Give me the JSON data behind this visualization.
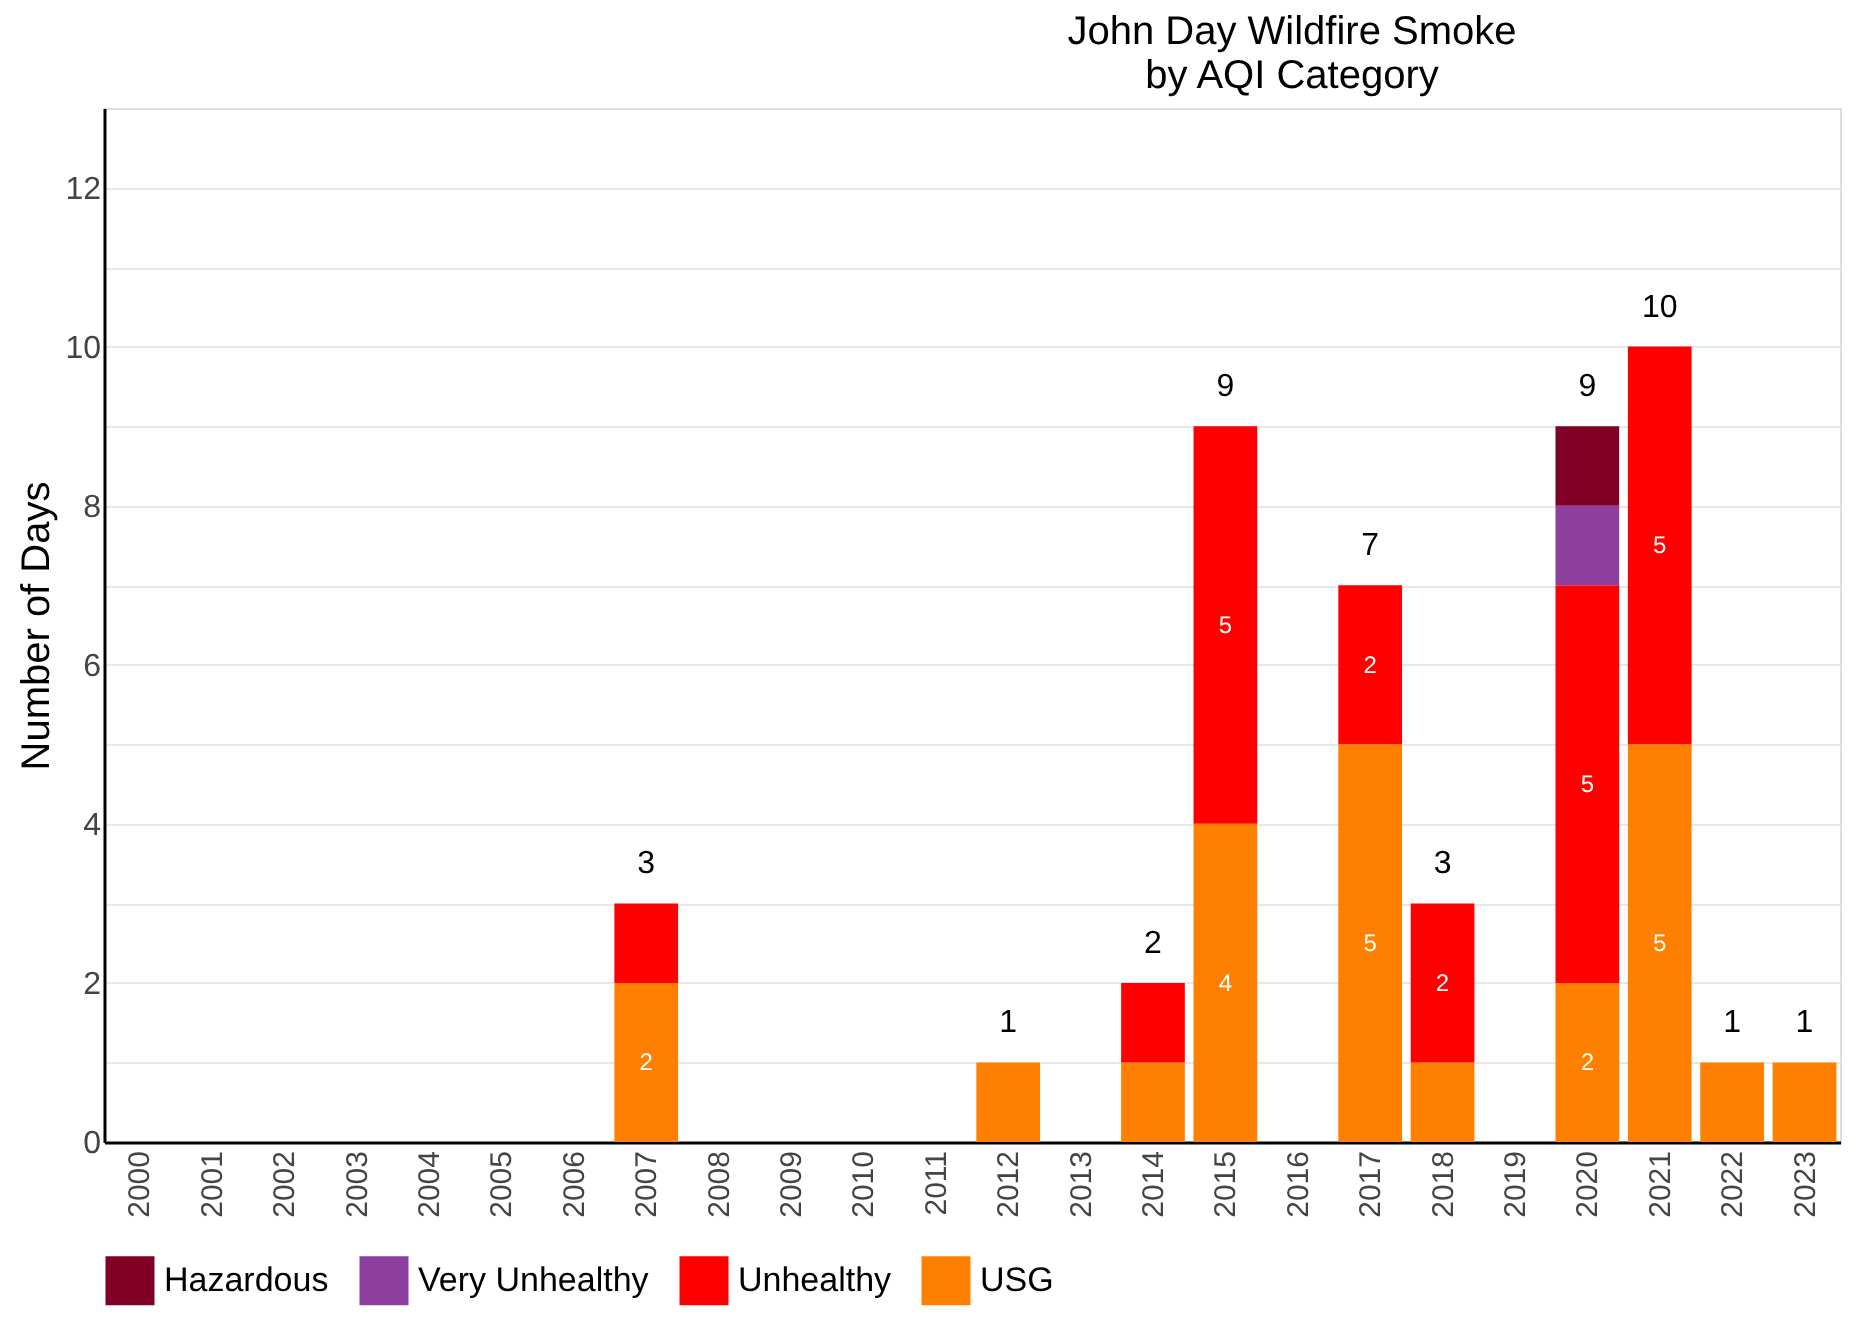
{
  "chart_data": {
    "type": "bar",
    "stacked": true,
    "title": [
      "John Day Wildfire Smoke",
      " by AQI Category"
    ],
    "ylabel": "Number of Days",
    "categories": [
      "2000",
      "2001",
      "2002",
      "2003",
      "2004",
      "2005",
      "2006",
      "2007",
      "2008",
      "2009",
      "2010",
      "2011",
      "2012",
      "2013",
      "2014",
      "2015",
      "2016",
      "2017",
      "2018",
      "2019",
      "2020",
      "2021",
      "2022",
      "2023"
    ],
    "series": [
      {
        "name": "USG",
        "color": "#ff8000",
        "values": [
          null,
          null,
          null,
          null,
          null,
          null,
          null,
          2,
          null,
          null,
          null,
          null,
          1,
          null,
          1,
          4,
          null,
          5,
          1,
          null,
          2,
          5,
          1,
          1
        ],
        "value_labels": [
          null,
          null,
          null,
          null,
          null,
          null,
          null,
          "2",
          null,
          null,
          null,
          null,
          null,
          null,
          null,
          "4",
          null,
          "5",
          null,
          null,
          "2",
          "5",
          null,
          null
        ]
      },
      {
        "name": "Unhealthy",
        "color": "#ff0000",
        "values": [
          null,
          null,
          null,
          null,
          null,
          null,
          null,
          1,
          null,
          null,
          null,
          null,
          null,
          null,
          1,
          5,
          null,
          2,
          2,
          null,
          5,
          5,
          null,
          null
        ],
        "value_labels": [
          null,
          null,
          null,
          null,
          null,
          null,
          null,
          null,
          null,
          null,
          null,
          null,
          null,
          null,
          null,
          "5",
          null,
          "2",
          "2",
          null,
          "5",
          "5",
          null,
          null
        ]
      },
      {
        "name": "Very Unhealthy",
        "color": "#8e3f9e",
        "values": [
          null,
          null,
          null,
          null,
          null,
          null,
          null,
          null,
          null,
          null,
          null,
          null,
          null,
          null,
          null,
          null,
          null,
          null,
          null,
          null,
          1,
          null,
          null,
          null
        ],
        "value_labels": [
          null,
          null,
          null,
          null,
          null,
          null,
          null,
          null,
          null,
          null,
          null,
          null,
          null,
          null,
          null,
          null,
          null,
          null,
          null,
          null,
          null,
          null,
          null,
          null
        ]
      },
      {
        "name": "Hazardous",
        "color": "#800026",
        "values": [
          null,
          null,
          null,
          null,
          null,
          null,
          null,
          null,
          null,
          null,
          null,
          null,
          null,
          null,
          null,
          null,
          null,
          null,
          null,
          null,
          1,
          null,
          null,
          null
        ],
        "value_labels": [
          null,
          null,
          null,
          null,
          null,
          null,
          null,
          null,
          null,
          null,
          null,
          null,
          null,
          null,
          null,
          null,
          null,
          null,
          null,
          null,
          null,
          null,
          null,
          null
        ]
      }
    ],
    "totals": [
      null,
      null,
      null,
      null,
      null,
      null,
      null,
      "3",
      null,
      null,
      null,
      null,
      "1",
      null,
      "2",
      "9",
      null,
      "7",
      "3",
      null,
      "9",
      "10",
      "1",
      "1"
    ],
    "ylim": [
      0,
      13
    ],
    "yticks": [
      0,
      {
        "value": 1,
        "label": null
      },
      2,
      {
        "value": 3,
        "label": null
      },
      4,
      {
        "value": 5,
        "label": null
      },
      6,
      {
        "value": 7,
        "label": null
      },
      8,
      {
        "value": 9,
        "label": null
      },
      10,
      {
        "value": 11,
        "label": null
      },
      12
    ],
    "grid": "y",
    "legend": "bottom"
  }
}
